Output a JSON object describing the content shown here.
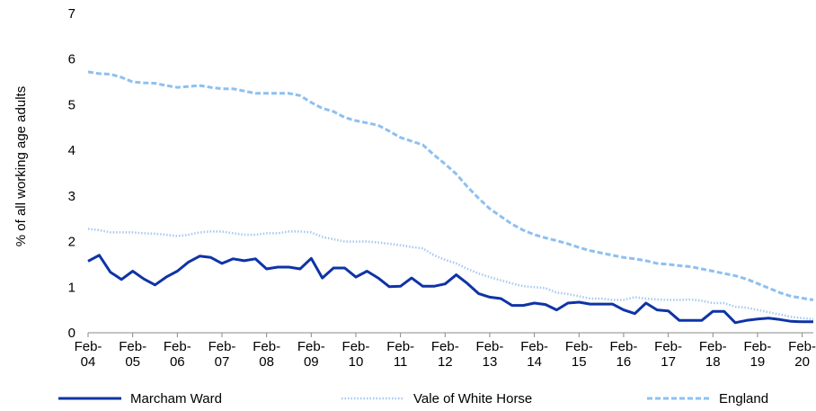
{
  "chart_data": {
    "type": "line",
    "y_label": "% of all working age adults",
    "categories": [
      "Feb-04",
      null,
      null,
      null,
      "Feb-05",
      null,
      null,
      null,
      "Feb-06",
      null,
      null,
      null,
      "Feb-07",
      null,
      null,
      null,
      "Feb-08",
      null,
      null,
      null,
      "Feb-09",
      null,
      null,
      null,
      "Feb-10",
      null,
      null,
      null,
      "Feb-11",
      null,
      null,
      null,
      "Feb-12",
      null,
      null,
      null,
      "Feb-13",
      null,
      null,
      null,
      "Feb-14",
      null,
      null,
      null,
      "Feb-15",
      null,
      null,
      null,
      "Feb-16",
      null,
      null,
      null,
      "Feb-17",
      null,
      null,
      null,
      "Feb-18",
      null,
      null,
      null,
      "Feb-19",
      null,
      null,
      null,
      "Feb-20",
      null
    ],
    "ylim": [
      0,
      7
    ],
    "yticks": [
      0,
      1,
      2,
      3,
      4,
      5,
      6,
      7
    ],
    "series": [
      {
        "name": "Marcham Ward",
        "color": "#0f33a6",
        "dash": "solid",
        "values": [
          1.57,
          1.7,
          1.33,
          1.17,
          1.35,
          1.18,
          1.05,
          1.22,
          1.35,
          1.55,
          1.68,
          1.65,
          1.52,
          1.62,
          1.58,
          1.62,
          1.4,
          1.44,
          1.44,
          1.4,
          1.63,
          1.2,
          1.42,
          1.42,
          1.22,
          1.35,
          1.2,
          1.01,
          1.02,
          1.2,
          1.02,
          1.02,
          1.07,
          1.27,
          1.08,
          0.86,
          0.78,
          0.75,
          0.6,
          0.6,
          0.65,
          0.62,
          0.5,
          0.65,
          0.67,
          0.63,
          0.63,
          0.63,
          0.5,
          0.42,
          0.65,
          0.5,
          0.48,
          0.27,
          0.27,
          0.27,
          0.47,
          0.47,
          0.22,
          0.27,
          0.3,
          0.32,
          0.29,
          0.25,
          0.24,
          0.24
        ]
      },
      {
        "name": "Vale of White Horse",
        "color": "#a6c8f0",
        "dash": "dotted",
        "values": [
          2.28,
          2.25,
          2.2,
          2.2,
          2.2,
          2.18,
          2.17,
          2.15,
          2.12,
          2.15,
          2.2,
          2.22,
          2.22,
          2.18,
          2.15,
          2.15,
          2.18,
          2.18,
          2.22,
          2.22,
          2.2,
          2.1,
          2.05,
          2.0,
          2.0,
          2.0,
          1.98,
          1.95,
          1.92,
          1.88,
          1.85,
          1.7,
          1.6,
          1.52,
          1.4,
          1.3,
          1.22,
          1.15,
          1.08,
          1.02,
          1.0,
          0.98,
          0.88,
          0.85,
          0.8,
          0.75,
          0.75,
          0.72,
          0.72,
          0.78,
          0.75,
          0.73,
          0.72,
          0.72,
          0.73,
          0.7,
          0.65,
          0.65,
          0.57,
          0.55,
          0.5,
          0.45,
          0.4,
          0.35,
          0.32,
          0.3
        ]
      },
      {
        "name": "England",
        "color": "#8ec0f0",
        "dash": "dashed",
        "values": [
          5.72,
          5.68,
          5.67,
          5.6,
          5.5,
          5.48,
          5.47,
          5.42,
          5.38,
          5.4,
          5.42,
          5.38,
          5.35,
          5.35,
          5.3,
          5.25,
          5.25,
          5.25,
          5.25,
          5.2,
          5.05,
          4.92,
          4.85,
          4.72,
          4.65,
          4.6,
          4.55,
          4.42,
          4.28,
          4.2,
          4.12,
          3.9,
          3.7,
          3.48,
          3.2,
          2.95,
          2.72,
          2.55,
          2.38,
          2.25,
          2.15,
          2.08,
          2.02,
          1.95,
          1.87,
          1.8,
          1.75,
          1.7,
          1.65,
          1.62,
          1.58,
          1.52,
          1.5,
          1.47,
          1.45,
          1.4,
          1.35,
          1.3,
          1.25,
          1.18,
          1.08,
          0.98,
          0.88,
          0.8,
          0.76,
          0.72
        ]
      }
    ]
  }
}
